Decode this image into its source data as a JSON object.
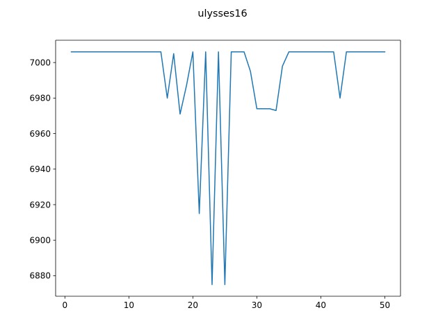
{
  "chart_data": {
    "type": "line",
    "title": "ulysses16",
    "xlabel": "",
    "ylabel": "",
    "xlim": [
      -1.45,
      52.45
    ],
    "ylim": [
      6868.45,
      7012.55
    ],
    "x_ticks": [
      0,
      10,
      20,
      30,
      40,
      50
    ],
    "y_ticks": [
      6880,
      6900,
      6920,
      6940,
      6960,
      6980,
      7000
    ],
    "grid": false,
    "series": [
      {
        "color": "#1f77b4",
        "x": [
          1,
          2,
          3,
          4,
          5,
          6,
          7,
          8,
          9,
          10,
          11,
          12,
          13,
          14,
          15,
          16,
          17,
          18,
          19,
          20,
          21,
          22,
          23,
          24,
          25,
          26,
          27,
          28,
          29,
          30,
          31,
          32,
          33,
          34,
          35,
          36,
          37,
          38,
          39,
          40,
          41,
          42,
          43,
          44,
          45,
          46,
          47,
          48,
          49,
          50
        ],
        "values": [
          7006,
          7006,
          7006,
          7006,
          7006,
          7006,
          7006,
          7006,
          7006,
          7006,
          7006,
          7006,
          7006,
          7006,
          7006,
          6980,
          7005,
          6971,
          6987,
          7006,
          6915,
          7006,
          6875,
          7006,
          6875,
          7006,
          7006,
          7006,
          6995,
          6974,
          6974,
          6974,
          6973,
          6998,
          7006,
          7006,
          7006,
          7006,
          7006,
          7006,
          7006,
          7006,
          6980,
          7006,
          7006,
          7006,
          7006,
          7006,
          7006,
          7006
        ]
      }
    ]
  }
}
